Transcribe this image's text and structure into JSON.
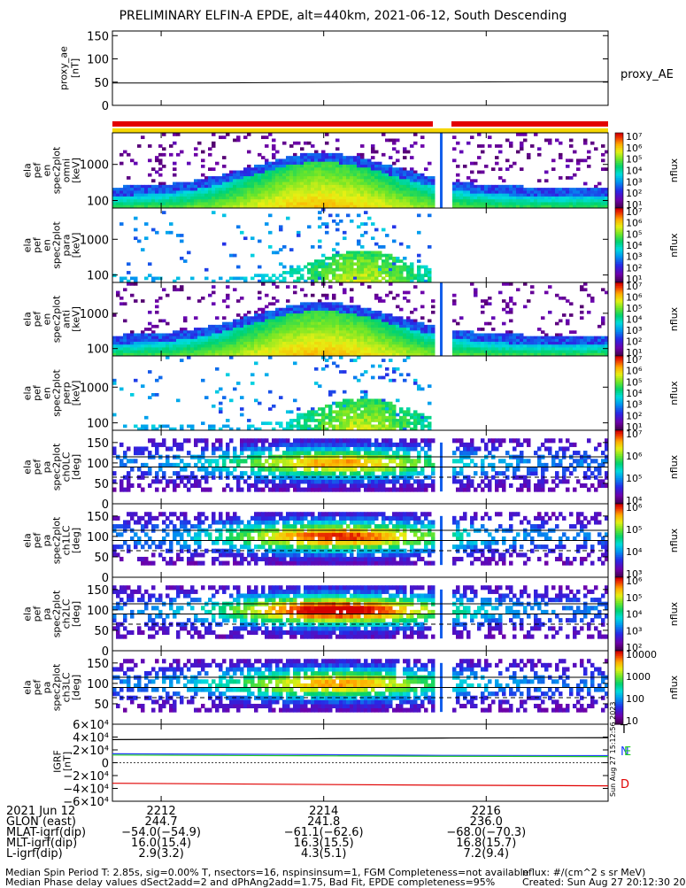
{
  "title": "PRELIMINARY ELFIN-A EPDE, alt=440km, 2021-06-12, South Descending",
  "colors": {
    "red_bar": "#e30000",
    "yellow_bar": "#f5d600",
    "grf_T": "#000000",
    "grf_N": "#1f3fff",
    "grf_E": "#22cc22",
    "grf_D": "#e00000"
  },
  "panels": {
    "proxy_ae": {
      "ylabel": [
        "proxy_ae",
        "[nT]"
      ],
      "ticks": [
        "150",
        "100",
        "50",
        "0"
      ],
      "legend": "proxy_AE"
    },
    "en1": {
      "ylabel": [
        "ela",
        "pef",
        "en",
        "spec2plot",
        "omni",
        "[keV]"
      ],
      "ticks": [
        "1000",
        "100"
      ]
    },
    "en2": {
      "ylabel": [
        "ela",
        "pef",
        "en",
        "spec2plot",
        "para",
        "[keV]"
      ],
      "ticks": [
        "1000",
        "100"
      ]
    },
    "en3": {
      "ylabel": [
        "ela",
        "pef",
        "en",
        "spec2plot",
        "anti",
        "[keV]"
      ],
      "ticks": [
        "1000",
        "100"
      ]
    },
    "en4": {
      "ylabel": [
        "ela",
        "pef",
        "en",
        "spec2plot",
        "perp",
        "[keV]"
      ],
      "ticks": [
        "1000",
        "100"
      ]
    },
    "pa0": {
      "ylabel": [
        "ela",
        "pef",
        "pa",
        "spec2plot",
        "ch0LC",
        "[deg]"
      ],
      "ticks": [
        "150",
        "100",
        "50",
        "0"
      ]
    },
    "pa1": {
      "ylabel": [
        "ela",
        "pef",
        "pa",
        "spec2plot",
        "ch1LC",
        "[deg]"
      ],
      "ticks": [
        "150",
        "100",
        "50",
        "0"
      ]
    },
    "pa2": {
      "ylabel": [
        "ela",
        "pef",
        "pa",
        "spec2plot",
        "ch2LC",
        "[deg]"
      ],
      "ticks": [
        "150",
        "100",
        "50",
        "0"
      ]
    },
    "pa3": {
      "ylabel": [
        "ela",
        "pef",
        "pa",
        "spec2plot",
        "ch3LC",
        "[deg]"
      ],
      "ticks": [
        "150",
        "100",
        "50"
      ]
    },
    "grf": {
      "ylabel": [
        "IGRF",
        "[nT]"
      ],
      "ticks": [
        "6×10⁴",
        "4×10⁴",
        "2×10⁴",
        "0",
        "−2×10⁴",
        "−4×10⁴",
        "−6×10⁴"
      ],
      "legend": [
        "T",
        "N",
        "E",
        "D"
      ]
    }
  },
  "colorbars": {
    "label": "nflux",
    "cb1": [
      "10⁷",
      "10⁶",
      "10⁵",
      "10⁴",
      "10³",
      "10²",
      "10¹"
    ],
    "cb2": [
      "10⁷",
      "10⁶",
      "10⁵",
      "10⁴",
      "10³",
      "10²",
      "10¹"
    ],
    "cb3": [
      "10⁷",
      "10⁶",
      "10⁵",
      "10⁴",
      "10³",
      "10²",
      "10¹"
    ],
    "cb4": [
      "10⁷",
      "10⁶",
      "10⁵",
      "10⁴",
      "10³",
      "10²",
      "10¹"
    ],
    "cb5": [
      "10⁷",
      "10⁶",
      "10⁵",
      "10⁴"
    ],
    "cb6": [
      "10⁶",
      "10⁵",
      "10⁴",
      "10³"
    ],
    "cb7": [
      "10⁶",
      "10⁵",
      "10⁴",
      "10³",
      "10²"
    ],
    "cb8": [
      "10000",
      "1000",
      "100",
      "10"
    ]
  },
  "created_vertical": "Sun Aug 27 15:12:56 2023",
  "orbit": {
    "rows": [
      {
        "label": "2021 Jun 12",
        "v1": "2212",
        "v2": "2214",
        "v3": "2216"
      },
      {
        "label": "GLON (east)",
        "v1": "244.7",
        "v2": "241.8",
        "v3": "236.0"
      },
      {
        "label": "MLAT-igrf(dip)",
        "v1": "−54.0(−54.9)",
        "v2": "−61.1(−62.6)",
        "v3": "−68.0(−70.3)"
      },
      {
        "label": "MLT-igrf(dip)",
        "v1": "16.0(15.4)",
        "v2": "16.3(15.5)",
        "v3": "16.8(15.7)"
      },
      {
        "label": "L-igrf(dip)",
        "v1": "2.9(3.2)",
        "v2": "4.3(5.1)",
        "v3": "7.2(9.4)"
      }
    ]
  },
  "footer": {
    "line1": "Median Spin Period T: 2.85s, sig=0.00% T, nsectors=16, nspinsinsum=1, FGM Completeness=not available",
    "line2": "Median Phase delay values dSect2add=2 and dPhAng2add=1.75, Bad Fit, EPDE completeness=95%",
    "units": "nflux: #/(cm^2 s sr MeV)",
    "created": "Created: Sun Aug 27 20:12:30 2023"
  },
  "chart_data": {
    "type": "heatmap",
    "x_range": [
      "2211.4",
      "2217.5"
    ],
    "x_ticks": [
      "2212",
      "2214",
      "2216"
    ],
    "proxy_ae": {
      "values": [
        48,
        48,
        49,
        50,
        50,
        51,
        51
      ],
      "ylim": [
        0,
        150
      ]
    },
    "energy_ylim_keV": [
      60,
      6000
    ],
    "energy_scale": "log",
    "pa_ylim_deg": [
      0,
      180
    ],
    "igrf_nT": {
      "T": [
        36000,
        37000,
        38500,
        39000
      ],
      "N": [
        14000,
        13000,
        11500,
        11000
      ],
      "E": [
        12000,
        11000,
        10000,
        9500
      ],
      "D": [
        -32000,
        -33500,
        -35000,
        -36000
      ]
    },
    "grf_ylim": [
      -60000,
      60000
    ],
    "data_gap": [
      "2215.4",
      "2215.6"
    ]
  }
}
